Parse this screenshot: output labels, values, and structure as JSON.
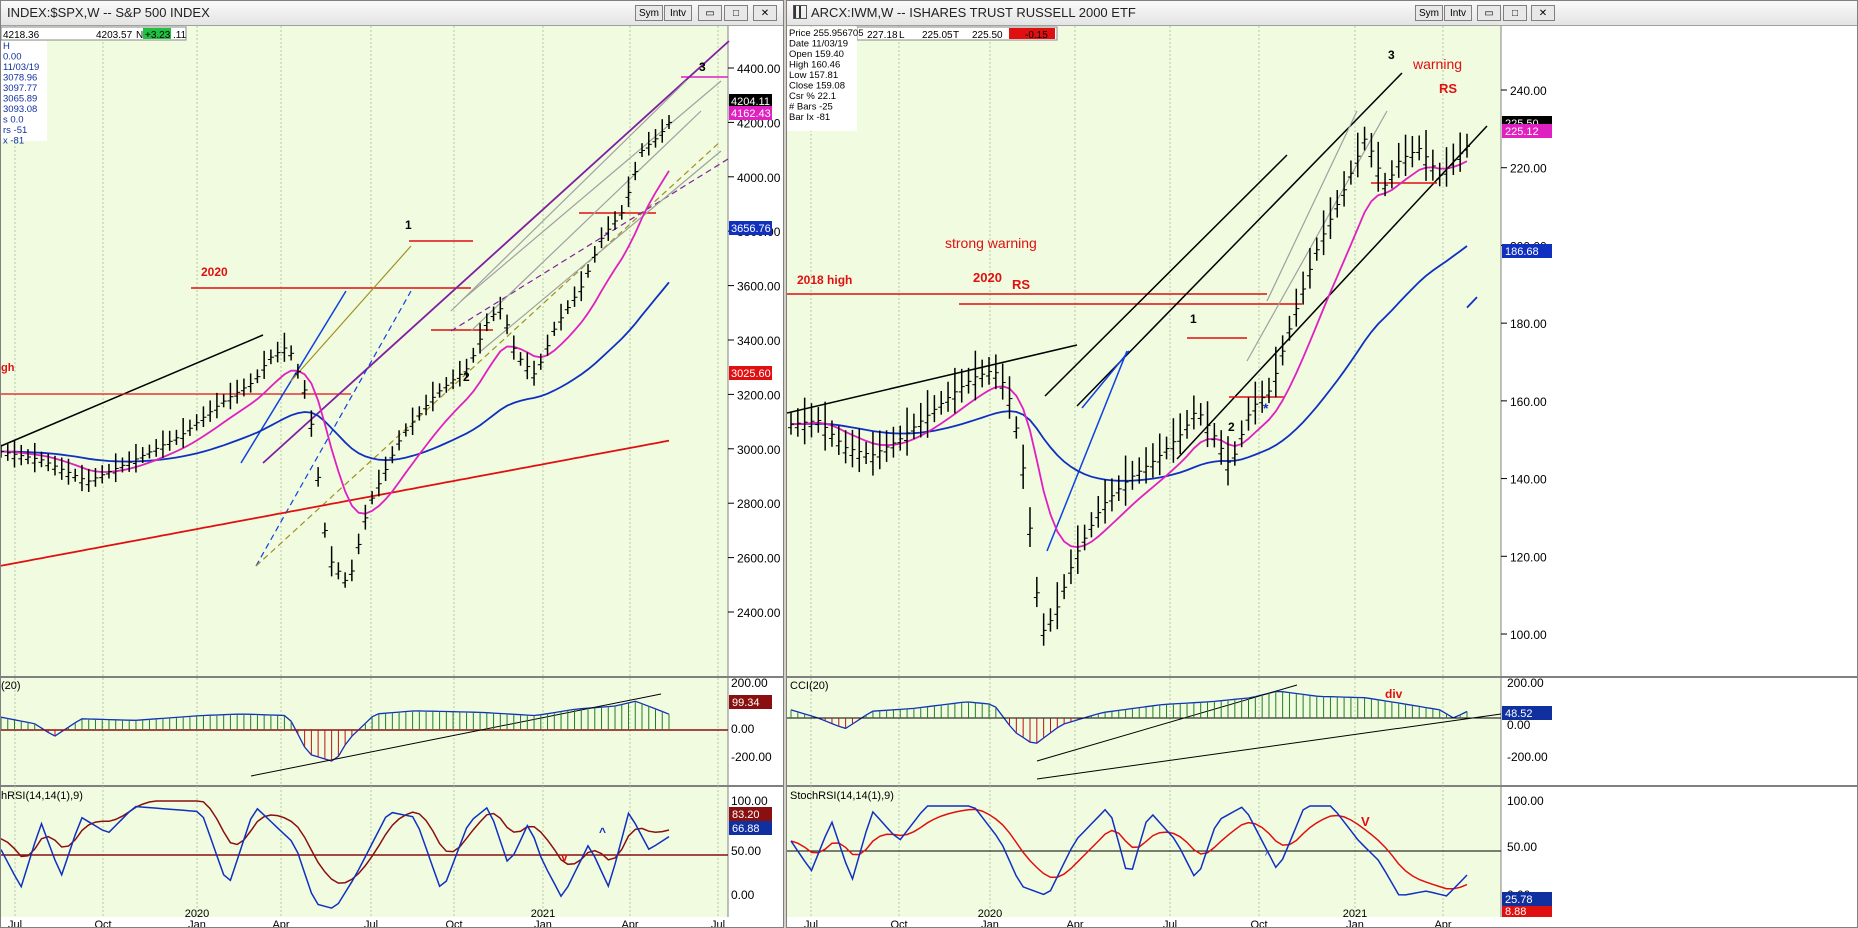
{
  "left": {
    "title": "INDEX:$SPX,W -- S&P 500 INDEX",
    "btn_sym": "Sym",
    "btn_intv": "Intv",
    "infobar": {
      "v1": "4218.36",
      "v2": "4203.57",
      "v3": "N",
      "v4": "+3.23",
      "v5": ".11"
    },
    "datawin": [
      "H",
      "0.00",
      "11/03/19",
      "3078.96",
      "3097.77",
      "3065.89",
      "3093.08",
      "s 0.0",
      "rs -51",
      "x -81"
    ],
    "price_tags": [
      {
        "text": "4204.11",
        "color": "#000000"
      },
      {
        "text": "4162.43",
        "color": "#e020c0"
      },
      {
        "text": "3656.76",
        "color": "#1030c0"
      },
      {
        "text": "3025.60",
        "color": "#e01010"
      }
    ],
    "yticks": [
      "4400.00",
      "4200.00",
      "4000.00",
      "3800.00",
      "3600.00",
      "3400.00",
      "3200.00",
      "3000.00",
      "2800.00",
      "2600.00",
      "2400.00"
    ],
    "xticks": [
      "Jul",
      "Oct",
      "2020\nJan",
      "Apr",
      "Jul",
      "Oct",
      "2021\nJan",
      "Apr",
      "Jul"
    ],
    "annotations": [
      "2020",
      "1",
      "2",
      "3",
      "gh"
    ],
    "cci": {
      "label": "(20)",
      "ticks": [
        "200.00",
        "0.00",
        "-200.00"
      ],
      "tag": "99.34"
    },
    "stoch": {
      "label": "hRSI(14,14(1),9)",
      "ticks": [
        "100.00",
        "50.00",
        "0.00"
      ],
      "tag1": "83.20",
      "tag2": "66.88",
      "marks": [
        "v",
        "^"
      ]
    }
  },
  "right": {
    "title": "ARCX:IWM,W -- ISHARES TRUST RUSSELL 2000 ETF",
    "btn_sym": "Sym",
    "btn_intv": "Intv",
    "infobar": {
      "v1": "227.18",
      "v2": "L",
      "v3": "225.05",
      "v4": "T",
      "v5": "225.50",
      "v6": "-0.15"
    },
    "datawin": [
      "Price  255.956705",
      "Date  11/03/19",
      "Open  159.40",
      "High  160.46",
      "Low  157.81",
      "Close  159.08",
      "Csr %  22.1",
      "# Bars -25",
      "Bar Ix -81"
    ],
    "price_tags": [
      {
        "text": "225.50",
        "color": "#000000"
      },
      {
        "text": "225.12",
        "color": "#e020c0"
      },
      {
        "text": "186.68",
        "color": "#1030c0"
      }
    ],
    "yticks": [
      "240.00",
      "220.00",
      "200.00",
      "180.00",
      "160.00",
      "140.00",
      "120.00",
      "100.00"
    ],
    "xticks": [
      "Jul",
      "Oct",
      "2020\nJan",
      "Apr",
      "Jul",
      "Oct",
      "2021\nJan",
      "Apr"
    ],
    "annotations": [
      "strong warning",
      "2020",
      "RS",
      "2018 high",
      "1",
      "2",
      "3",
      "warning",
      "RS",
      "*"
    ],
    "cci": {
      "label": "CCI(20)",
      "ticks": [
        "200.00",
        "0.00",
        "-200.00"
      ],
      "tag": "48.52",
      "mark": "div"
    },
    "stoch": {
      "label": "StochRSI(14,14(1),9)",
      "ticks": [
        "100.00",
        "50.00",
        "0.00"
      ],
      "tag1": "25.78",
      "tag2": "8.88",
      "marks": [
        "V",
        "^"
      ]
    }
  },
  "chart_data": [
    {
      "type": "line",
      "title": "S&P 500 INDEX (weekly)",
      "x": [
        "2019-07",
        "2019-10",
        "2020-01",
        "2020-02",
        "2020-03",
        "2020-04",
        "2020-07",
        "2020-09",
        "2020-10",
        "2021-01",
        "2021-03",
        "2021-05"
      ],
      "series": [
        {
          "name": "",
          "values": [
            2980,
            2950,
            3250,
            3390,
            2300,
            2780,
            3200,
            3560,
            3270,
            3800,
            3900,
            4200
          ]
        }
      ],
      "ylim": [
        2250,
        4500
      ]
    },
    {
      "type": "line",
      "title": "ISHARES TRUST RUSSELL 2000 ETF (weekly)",
      "x": [
        "2019-07",
        "2019-10",
        "2020-01",
        "2020-02",
        "2020-03",
        "2020-06",
        "2020-09",
        "2020-10",
        "2021-01",
        "2021-03",
        "2021-05"
      ],
      "series": [
        {
          "name": "",
          "values": [
            155,
            148,
            165,
            168,
            100,
            140,
            150,
            142,
            210,
            230,
            225.5
          ]
        }
      ],
      "ylim": [
        90,
        250
      ]
    }
  ]
}
